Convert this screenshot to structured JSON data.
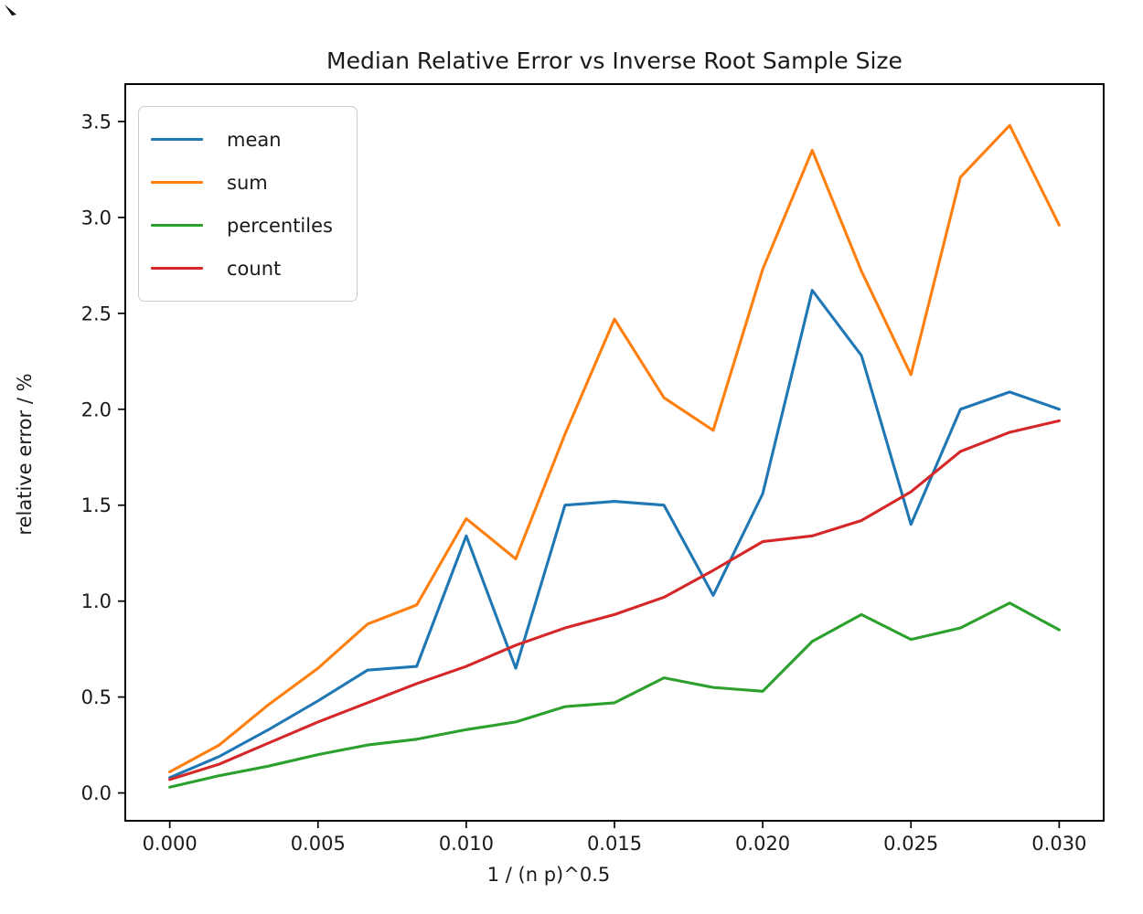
{
  "chart_data": {
    "type": "line",
    "title": "Median Relative Error vs Inverse Root Sample Size",
    "xlabel": "1 / (n p)^0.5",
    "ylabel": "relative error / %",
    "xlim": [
      -0.0015,
      0.0315
    ],
    "ylim": [
      -0.145,
      3.695
    ],
    "grid": false,
    "legend_position": "upper left",
    "x_ticks": [
      0.0,
      0.005,
      0.01,
      0.015,
      0.02,
      0.025,
      0.03
    ],
    "x_tick_labels": [
      "0.000",
      "0.005",
      "0.010",
      "0.015",
      "0.020",
      "0.025",
      "0.030"
    ],
    "y_ticks": [
      0.0,
      0.5,
      1.0,
      1.5,
      2.0,
      2.5,
      3.0,
      3.5
    ],
    "y_tick_labels": [
      "0.0",
      "0.5",
      "1.0",
      "1.5",
      "2.0",
      "2.5",
      "3.0",
      "3.5"
    ],
    "x": [
      0.0,
      0.00167,
      0.00333,
      0.005,
      0.00667,
      0.00833,
      0.01,
      0.01167,
      0.01333,
      0.015,
      0.01667,
      0.01833,
      0.02,
      0.02167,
      0.02333,
      0.025,
      0.02667,
      0.02833,
      0.03
    ],
    "series": [
      {
        "name": "mean",
        "color": "#1f77b4",
        "values": [
          0.08,
          0.19,
          0.33,
          0.48,
          0.64,
          0.66,
          1.34,
          0.65,
          1.5,
          1.52,
          1.5,
          1.03,
          1.56,
          2.62,
          2.28,
          1.4,
          2.0,
          2.09,
          2.0
        ]
      },
      {
        "name": "sum",
        "color": "#ff7f0e",
        "values": [
          0.11,
          0.25,
          0.46,
          0.65,
          0.88,
          0.98,
          1.43,
          1.22,
          1.87,
          2.47,
          2.06,
          1.89,
          2.73,
          3.35,
          2.72,
          2.18,
          3.21,
          3.48,
          2.96
        ]
      },
      {
        "name": "percentiles",
        "color": "#2ca02c",
        "values": [
          0.03,
          0.09,
          0.14,
          0.2,
          0.25,
          0.28,
          0.33,
          0.37,
          0.45,
          0.47,
          0.6,
          0.55,
          0.53,
          0.79,
          0.93,
          0.8,
          0.86,
          0.99,
          0.85
        ]
      },
      {
        "name": "count",
        "color": "#d62728",
        "values": [
          0.07,
          0.15,
          0.26,
          0.37,
          0.47,
          0.57,
          0.66,
          0.77,
          0.86,
          0.93,
          1.02,
          1.16,
          1.31,
          1.34,
          1.42,
          1.57,
          1.78,
          1.88,
          1.94
        ]
      }
    ],
    "styles": {
      "line_width": 3.1,
      "spine_color": "#000000",
      "spine_width": 2,
      "tick_length": 8,
      "tick_width": 1.7,
      "background": "#ffffff"
    }
  }
}
